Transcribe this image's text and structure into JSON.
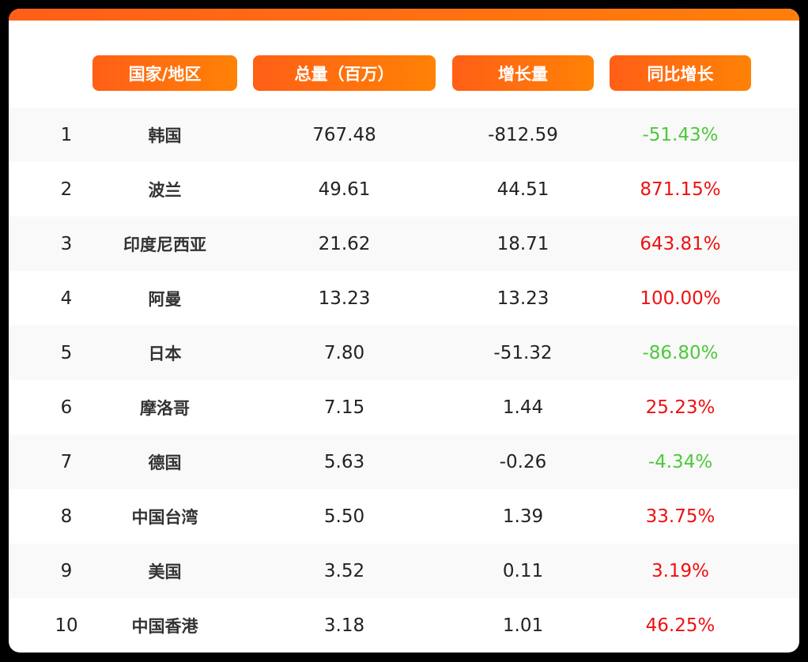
{
  "colors": {
    "accent": "#ff6a10",
    "up": "#f01010",
    "down": "#4cc93a"
  },
  "headers": [
    "国家/地区",
    "总量（百万）",
    "增长量",
    "同比增长"
  ],
  "rows": [
    {
      "rank": "1",
      "name": "韩国",
      "total": "767.48",
      "growth": "-812.59",
      "yoy": "-51.43%",
      "dir": "down"
    },
    {
      "rank": "2",
      "name": "波兰",
      "total": "49.61",
      "growth": "44.51",
      "yoy": "871.15%",
      "dir": "up"
    },
    {
      "rank": "3",
      "name": "印度尼西亚",
      "total": "21.62",
      "growth": "18.71",
      "yoy": "643.81%",
      "dir": "up"
    },
    {
      "rank": "4",
      "name": "阿曼",
      "total": "13.23",
      "growth": "13.23",
      "yoy": "100.00%",
      "dir": "up"
    },
    {
      "rank": "5",
      "name": "日本",
      "total": "7.80",
      "growth": "-51.32",
      "yoy": "-86.80%",
      "dir": "down"
    },
    {
      "rank": "6",
      "name": "摩洛哥",
      "total": "7.15",
      "growth": "1.44",
      "yoy": "25.23%",
      "dir": "up"
    },
    {
      "rank": "7",
      "name": "德国",
      "total": "5.63",
      "growth": "-0.26",
      "yoy": "-4.34%",
      "dir": "down"
    },
    {
      "rank": "8",
      "name": "中国台湾",
      "total": "5.50",
      "growth": "1.39",
      "yoy": "33.75%",
      "dir": "up"
    },
    {
      "rank": "9",
      "name": "美国",
      "total": "3.52",
      "growth": "0.11",
      "yoy": "3.19%",
      "dir": "up"
    },
    {
      "rank": "10",
      "name": "中国香港",
      "total": "3.18",
      "growth": "1.01",
      "yoy": "46.25%",
      "dir": "up"
    }
  ]
}
